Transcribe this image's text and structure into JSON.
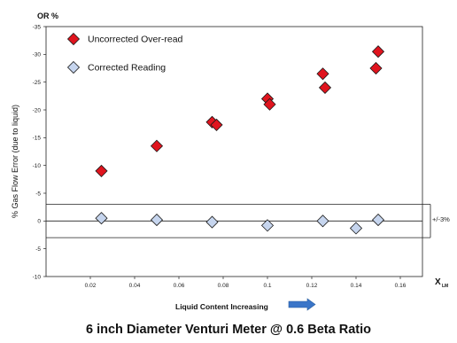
{
  "chart_data": {
    "type": "scatter",
    "title": "6 inch Diameter  Venturi Meter  @ 0.6 Beta Ratio",
    "y_unit_label": "OR %",
    "ylabel": "% Gas Flow Error (due to liquid)",
    "xlabel": "Liquid Content Increasing",
    "x_axis_symbol": "X",
    "x_axis_symbol_sub": "LM",
    "band_label": "+/-3%",
    "band": [
      -3,
      3
    ],
    "xlim": [
      0,
      0.17
    ],
    "ylim": [
      -10,
      35
    ],
    "y_inverted": true,
    "x_ticks": [
      0.02,
      0.04,
      0.06,
      0.08,
      0.1,
      0.12,
      0.14,
      0.16
    ],
    "x_tick_labels": [
      "0.02",
      "0.04",
      "0.06",
      "0.08",
      "0.1",
      "0.12",
      "0.14",
      "0.16"
    ],
    "y_ticks": [
      35,
      30,
      25,
      20,
      15,
      10,
      5,
      0,
      -5,
      -10
    ],
    "y_tick_labels": [
      "-35",
      "-30",
      "-25",
      "-20",
      "-15",
      "-10",
      "-5",
      "0",
      "-5",
      "-10"
    ],
    "grid": false,
    "legend_position": "top-left",
    "series": [
      {
        "name": "Uncorrected  Over-read",
        "color": "#e0141e",
        "marker": "diamond",
        "points": [
          [
            0.025,
            9.0
          ],
          [
            0.05,
            13.5
          ],
          [
            0.075,
            17.8
          ],
          [
            0.077,
            17.3
          ],
          [
            0.1,
            22.0
          ],
          [
            0.101,
            21.0
          ],
          [
            0.125,
            26.5
          ],
          [
            0.126,
            24.0
          ],
          [
            0.15,
            30.5
          ],
          [
            0.149,
            27.5
          ]
        ]
      },
      {
        "name": "Corrected Reading",
        "color": "#c6d5ee",
        "marker": "diamond",
        "points": [
          [
            0.025,
            0.5
          ],
          [
            0.05,
            0.2
          ],
          [
            0.075,
            -0.2
          ],
          [
            0.1,
            -0.8
          ],
          [
            0.125,
            0.0
          ],
          [
            0.14,
            -1.3
          ],
          [
            0.15,
            0.2
          ]
        ]
      }
    ]
  }
}
